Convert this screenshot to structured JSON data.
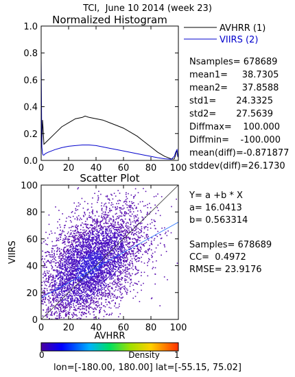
{
  "header": {
    "title": "TCI,  June 10 2014 (week 23)"
  },
  "footer": {
    "lonlat": "lon=[-180.00, 180.00] lat=[-55.15, 75.02]"
  },
  "colors": {
    "avhrr": "#000000",
    "viirs": "#0000cc"
  },
  "histogram_stats": {
    "nsamples": "Nsamples= 678689",
    "mean1": "mean1=     38.7305",
    "mean2": "mean2=     37.8588",
    "std1": "std1=       24.3325",
    "std2": "std2=       27.5639",
    "diffmax": "Diffmax=    100.000",
    "diffmin": "Diffmin=    -100.000",
    "mean_diff": "mean(diff)=-0.871877",
    "stddev_diff": "stddev(diff)=26.1730"
  },
  "regression_stats": {
    "equation": "Y= a +b * X",
    "a": "a= 16.0413",
    "b": "b= 0.563314",
    "samples": "Samples= 678689",
    "cc": "CC=  0.4972",
    "rmse": "RMSE= 23.9176"
  },
  "colorbar": {
    "title": "Density",
    "min_label": "0",
    "max_label": "1"
  },
  "chart_data": [
    {
      "type": "line",
      "title": "Normalized Histogram",
      "xlim": [
        0,
        100
      ],
      "ylim": [
        0,
        1.0
      ],
      "xticks": [
        "0",
        "20",
        "40",
        "60",
        "80",
        "100"
      ],
      "yticks": [
        "0.0",
        "0.2",
        "0.4",
        "0.6",
        "0.8",
        "1.0"
      ],
      "legend_placement": "outside-right",
      "series": [
        {
          "name": "AVHRR (1)",
          "color": "#000000",
          "x": [
            0,
            0.5,
            1,
            1.5,
            2,
            3,
            5,
            10,
            15,
            20,
            25,
            30,
            32,
            35,
            40,
            45,
            50,
            55,
            60,
            65,
            70,
            75,
            80,
            85,
            90,
            95,
            97,
            98,
            99,
            99.5,
            100
          ],
          "y": [
            0.28,
            0.12,
            0.3,
            0.22,
            0.12,
            0.13,
            0.15,
            0.2,
            0.25,
            0.28,
            0.31,
            0.32,
            0.33,
            0.32,
            0.31,
            0.3,
            0.28,
            0.26,
            0.24,
            0.21,
            0.18,
            0.14,
            0.1,
            0.06,
            0.03,
            0.01,
            0.01,
            0.04,
            0.08,
            0.03,
            0.03
          ]
        },
        {
          "name": "VIIRS (2)",
          "color": "#0000cc",
          "x": [
            0,
            0.5,
            1,
            1.5,
            2,
            3,
            5,
            10,
            15,
            20,
            25,
            30,
            35,
            40,
            45,
            50,
            55,
            60,
            65,
            70,
            75,
            80,
            85,
            90,
            95,
            97,
            98,
            99,
            99.5,
            100
          ],
          "y": [
            0.76,
            0.1,
            0.05,
            0.04,
            0.04,
            0.05,
            0.06,
            0.08,
            0.095,
            0.105,
            0.11,
            0.115,
            0.115,
            0.11,
            0.1,
            0.09,
            0.08,
            0.07,
            0.06,
            0.05,
            0.04,
            0.03,
            0.02,
            0.012,
            0.008,
            0.03,
            0.06,
            0.08,
            0.04,
            0.02
          ]
        }
      ]
    },
    {
      "type": "scatter",
      "title": "Scatter Plot",
      "xlabel": "AVHRR",
      "ylabel": "VIIRS",
      "xlim": [
        0,
        100
      ],
      "ylim": [
        0,
        100
      ],
      "xticks": [
        "0",
        "20",
        "40",
        "60",
        "80",
        "100"
      ],
      "yticks": [
        "0",
        "20",
        "40",
        "60",
        "80",
        "100"
      ],
      "regression": {
        "a": 16.0413,
        "b": 0.563314
      },
      "one_to_one_line": true,
      "density_cloud": {
        "center": [
          35,
          40
        ],
        "spread_x": 20,
        "spread_y": 22,
        "correlation": 0.5
      }
    }
  ]
}
